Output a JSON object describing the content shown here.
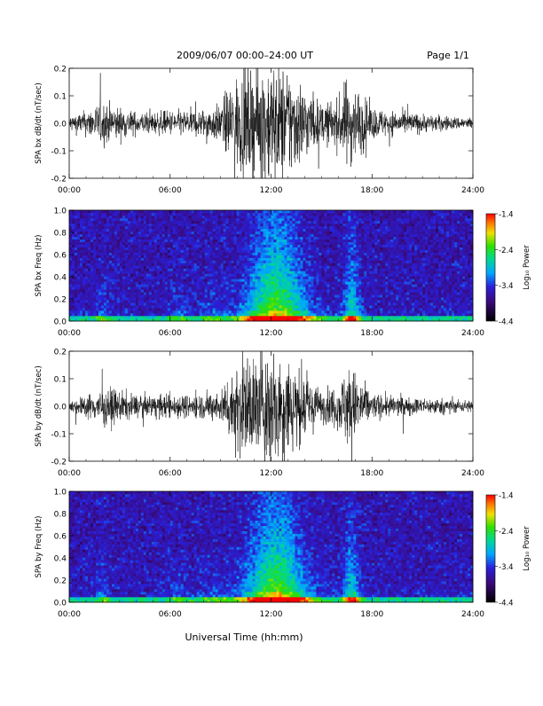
{
  "header": {
    "title": "2009/06/07  00:00–24:00 UT",
    "page_label": "Page 1/1"
  },
  "footer": {
    "xlabel": "Universal Time (hh:mm)"
  },
  "chart_data": [
    {
      "type": "line",
      "id": "bx-waveform",
      "ylabel": "SPA bx dB/dt (nT/sec)",
      "xlim": [
        0,
        24
      ],
      "ylim": [
        -0.2,
        0.2
      ],
      "x_ticks": [
        "00:00",
        "06:00",
        "12:00",
        "18:00",
        "24:00"
      ],
      "y_ticks": [
        "-0.2",
        "-0.1",
        "0.0",
        "0.1",
        "0.2"
      ],
      "amplitude_envelope": {
        "hours": [
          0,
          1,
          2,
          3,
          4,
          5,
          6,
          7,
          8,
          9,
          9.5,
          10,
          11,
          12,
          13,
          14,
          15,
          16,
          16.5,
          17,
          18,
          19,
          20,
          21,
          22,
          23,
          24
        ],
        "amplitude": [
          0.025,
          0.04,
          0.07,
          0.05,
          0.035,
          0.035,
          0.04,
          0.04,
          0.045,
          0.06,
          0.12,
          0.15,
          0.17,
          0.2,
          0.18,
          0.12,
          0.06,
          0.08,
          0.14,
          0.12,
          0.05,
          0.04,
          0.035,
          0.03,
          0.025,
          0.02,
          0.02
        ]
      }
    },
    {
      "type": "heatmap",
      "id": "bx-spectrogram",
      "ylabel": "SPA bx Freq (Hz)",
      "xlim": [
        0,
        24
      ],
      "ylim": [
        0,
        1.0
      ],
      "x_ticks": [
        "00:00",
        "06:00",
        "12:00",
        "18:00",
        "24:00"
      ],
      "y_ticks": [
        "0.0",
        "0.2",
        "0.4",
        "0.6",
        "0.8",
        "1.0"
      ],
      "colorbar": {
        "label": "Log₁₀ Power",
        "range": [
          -4.4,
          -1.4
        ],
        "ticks": [
          "-1.4",
          "-2.4",
          "-3.4",
          "-4.4"
        ]
      }
    },
    {
      "type": "line",
      "id": "by-waveform",
      "ylabel": "SPA by dB/dt (nT/sec)",
      "xlim": [
        0,
        24
      ],
      "ylim": [
        -0.2,
        0.2
      ],
      "x_ticks": [
        "00:00",
        "06:00",
        "12:00",
        "18:00",
        "24:00"
      ],
      "y_ticks": [
        "-0.2",
        "-0.1",
        "0.0",
        "0.1",
        "0.2"
      ],
      "amplitude_envelope": {
        "hours": [
          0,
          1,
          2,
          3,
          4,
          5,
          6,
          7,
          8,
          9,
          9.5,
          10,
          11,
          12,
          13,
          14,
          15,
          16,
          16.5,
          17,
          18,
          19,
          20,
          21,
          22,
          23,
          24
        ],
        "amplitude": [
          0.02,
          0.035,
          0.06,
          0.05,
          0.035,
          0.035,
          0.04,
          0.035,
          0.04,
          0.05,
          0.1,
          0.15,
          0.17,
          0.2,
          0.17,
          0.1,
          0.05,
          0.07,
          0.13,
          0.11,
          0.04,
          0.035,
          0.03,
          0.025,
          0.025,
          0.02,
          0.02
        ]
      }
    },
    {
      "type": "heatmap",
      "id": "by-spectrogram",
      "ylabel": "SPA by Freq (Hz)",
      "xlim": [
        0,
        24
      ],
      "ylim": [
        0,
        1.0
      ],
      "x_ticks": [
        "00:00",
        "06:00",
        "12:00",
        "18:00",
        "24:00"
      ],
      "y_ticks": [
        "0.0",
        "0.2",
        "0.4",
        "0.6",
        "0.8",
        "1.0"
      ],
      "colorbar": {
        "label": "Log₁₀ Power",
        "range": [
          -4.4,
          -1.4
        ],
        "ticks": [
          "-1.4",
          "-2.4",
          "-3.4",
          "-4.4"
        ]
      }
    }
  ]
}
